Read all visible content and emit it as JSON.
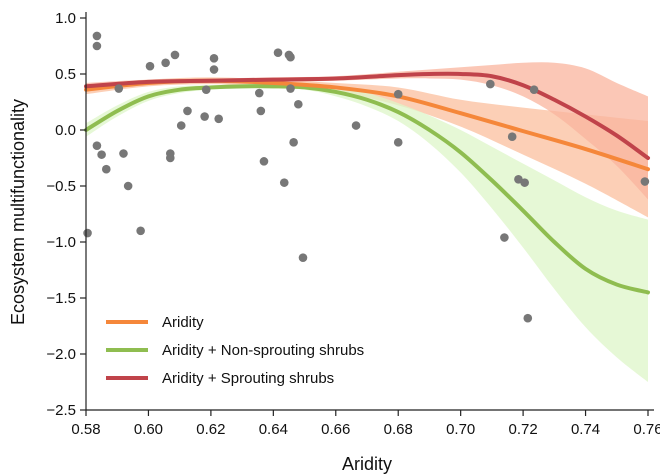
{
  "chart_data": {
    "type": "scatter",
    "xlabel": "Aridity",
    "ylabel": "Ecosystem multifunctionality",
    "xlim": [
      0.58,
      0.76
    ],
    "ylim": [
      -2.5,
      1.0
    ],
    "xticks": [
      "0.58",
      "0.60",
      "0.62",
      "0.64",
      "0.66",
      "0.68",
      "0.70",
      "0.72",
      "0.74",
      "0.76"
    ],
    "yticks": [
      "1.0",
      "0.5",
      "0.0",
      "−0.5",
      "−1.0",
      "−1.5",
      "−2.0",
      "−2.5"
    ],
    "grid": false,
    "legend_position": "bottom-left",
    "points": {
      "color": "#777777",
      "x": [
        0.5805,
        0.5835,
        0.5835,
        0.5835,
        0.585,
        0.5865,
        0.5905,
        0.592,
        0.5935,
        0.5975,
        0.6005,
        0.6055,
        0.607,
        0.607,
        0.6085,
        0.6105,
        0.6125,
        0.618,
        0.6185,
        0.621,
        0.621,
        0.6225,
        0.6355,
        0.636,
        0.637,
        0.6415,
        0.6435,
        0.645,
        0.6455,
        0.6455,
        0.6465,
        0.648,
        0.6495,
        0.6665,
        0.68,
        0.68,
        0.7095,
        0.714,
        0.7165,
        0.7185,
        0.7205,
        0.7215,
        0.7235,
        0.759
      ],
      "y": [
        -0.92,
        0.84,
        0.75,
        -0.14,
        -0.22,
        -0.35,
        0.37,
        -0.21,
        -0.5,
        -0.9,
        0.57,
        0.6,
        -0.21,
        -0.25,
        0.67,
        0.04,
        0.17,
        0.12,
        0.36,
        0.64,
        0.54,
        0.1,
        0.33,
        0.17,
        -0.28,
        0.69,
        -0.47,
        0.67,
        0.37,
        0.65,
        -0.11,
        0.23,
        -1.14,
        0.04,
        0.32,
        -0.11,
        0.41,
        -0.96,
        -0.06,
        -0.44,
        -0.47,
        -1.68,
        0.36,
        -0.46
      ]
    },
    "series": [
      {
        "name": "Aridity",
        "color": "#f5873a",
        "band_color": "#fbbf9d",
        "x": [
          0.58,
          0.6,
          0.62,
          0.64,
          0.66,
          0.68,
          0.7,
          0.72,
          0.74,
          0.76
        ],
        "y": [
          0.36,
          0.42,
          0.44,
          0.42,
          0.38,
          0.3,
          0.15,
          -0.01,
          -0.17,
          -0.35
        ],
        "band_lower": [
          0.32,
          0.39,
          0.41,
          0.39,
          0.34,
          0.22,
          0.03,
          -0.22,
          -0.48,
          -0.78
        ],
        "band_upper": [
          0.4,
          0.45,
          0.47,
          0.45,
          0.42,
          0.38,
          0.27,
          0.2,
          0.14,
          0.08
        ]
      },
      {
        "name": "Aridity + Non-sprouting shrubs",
        "color": "#8fbd50",
        "band_color": "#ddf5c8",
        "x": [
          0.58,
          0.59,
          0.6,
          0.61,
          0.62,
          0.63,
          0.64,
          0.65,
          0.66,
          0.67,
          0.68,
          0.69,
          0.7,
          0.71,
          0.72,
          0.73,
          0.74,
          0.75,
          0.76
        ],
        "y": [
          0.0,
          0.17,
          0.3,
          0.36,
          0.38,
          0.39,
          0.39,
          0.38,
          0.34,
          0.27,
          0.16,
          0.0,
          -0.2,
          -0.45,
          -0.72,
          -1.0,
          -1.24,
          -1.38,
          -1.45
        ],
        "band_lower": [
          -0.06,
          0.12,
          0.26,
          0.33,
          0.36,
          0.37,
          0.37,
          0.36,
          0.3,
          0.21,
          0.08,
          -0.12,
          -0.38,
          -0.7,
          -1.05,
          -1.42,
          -1.76,
          -2.03,
          -2.25
        ],
        "band_upper": [
          0.06,
          0.22,
          0.34,
          0.39,
          0.4,
          0.41,
          0.41,
          0.4,
          0.38,
          0.33,
          0.24,
          0.13,
          0.0,
          -0.15,
          -0.3,
          -0.45,
          -0.6,
          -0.72,
          -0.8
        ]
      },
      {
        "name": "Aridity + Sprouting shrubs",
        "color": "#c0434a",
        "band_color": "#f9b49e",
        "x": [
          0.58,
          0.6,
          0.62,
          0.64,
          0.66,
          0.68,
          0.69,
          0.7,
          0.71,
          0.72,
          0.73,
          0.74,
          0.75,
          0.76
        ],
        "y": [
          0.39,
          0.43,
          0.44,
          0.45,
          0.46,
          0.49,
          0.5,
          0.5,
          0.48,
          0.4,
          0.27,
          0.12,
          -0.05,
          -0.25
        ],
        "band_lower": [
          0.36,
          0.41,
          0.42,
          0.43,
          0.44,
          0.46,
          0.46,
          0.45,
          0.4,
          0.3,
          0.14,
          -0.08,
          -0.32,
          -0.62
        ],
        "band_upper": [
          0.42,
          0.45,
          0.46,
          0.47,
          0.48,
          0.52,
          0.54,
          0.56,
          0.58,
          0.6,
          0.6,
          0.55,
          0.42,
          0.3
        ]
      }
    ]
  }
}
